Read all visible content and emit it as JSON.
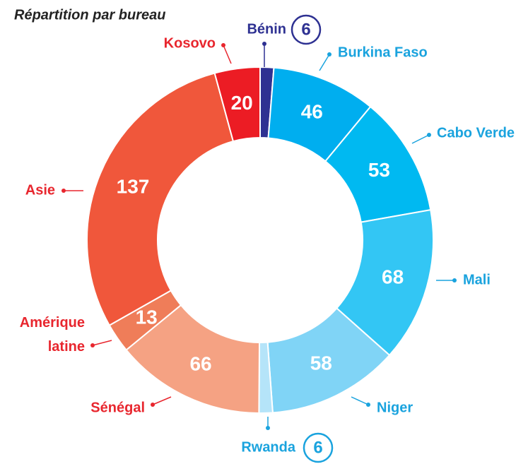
{
  "chart_data": {
    "type": "donut",
    "title": "Répartition par bureau",
    "categories": [
      "Bénin",
      "Burkina Faso",
      "Cabo Verde",
      "Mali",
      "Niger",
      "Rwanda",
      "Sénégal",
      "Amérique latine",
      "Asie",
      "Kosovo"
    ],
    "values": [
      6,
      46,
      53,
      68,
      58,
      6,
      66,
      13,
      137,
      20
    ],
    "colors": [
      "#2e3192",
      "#00aeef",
      "#00b9f1",
      "#33c6f4",
      "#80d4f6",
      "#b5e4f9",
      "#f5a283",
      "#ef7d59",
      "#f0573b",
      "#ec1c24"
    ],
    "label_colors": [
      "#2e3192",
      "#1aa3de",
      "#1aa3de",
      "#1aa3de",
      "#1aa3de",
      "#1aa3de",
      "#e8262e",
      "#e8262e",
      "#e8262e",
      "#e8262e"
    ]
  }
}
